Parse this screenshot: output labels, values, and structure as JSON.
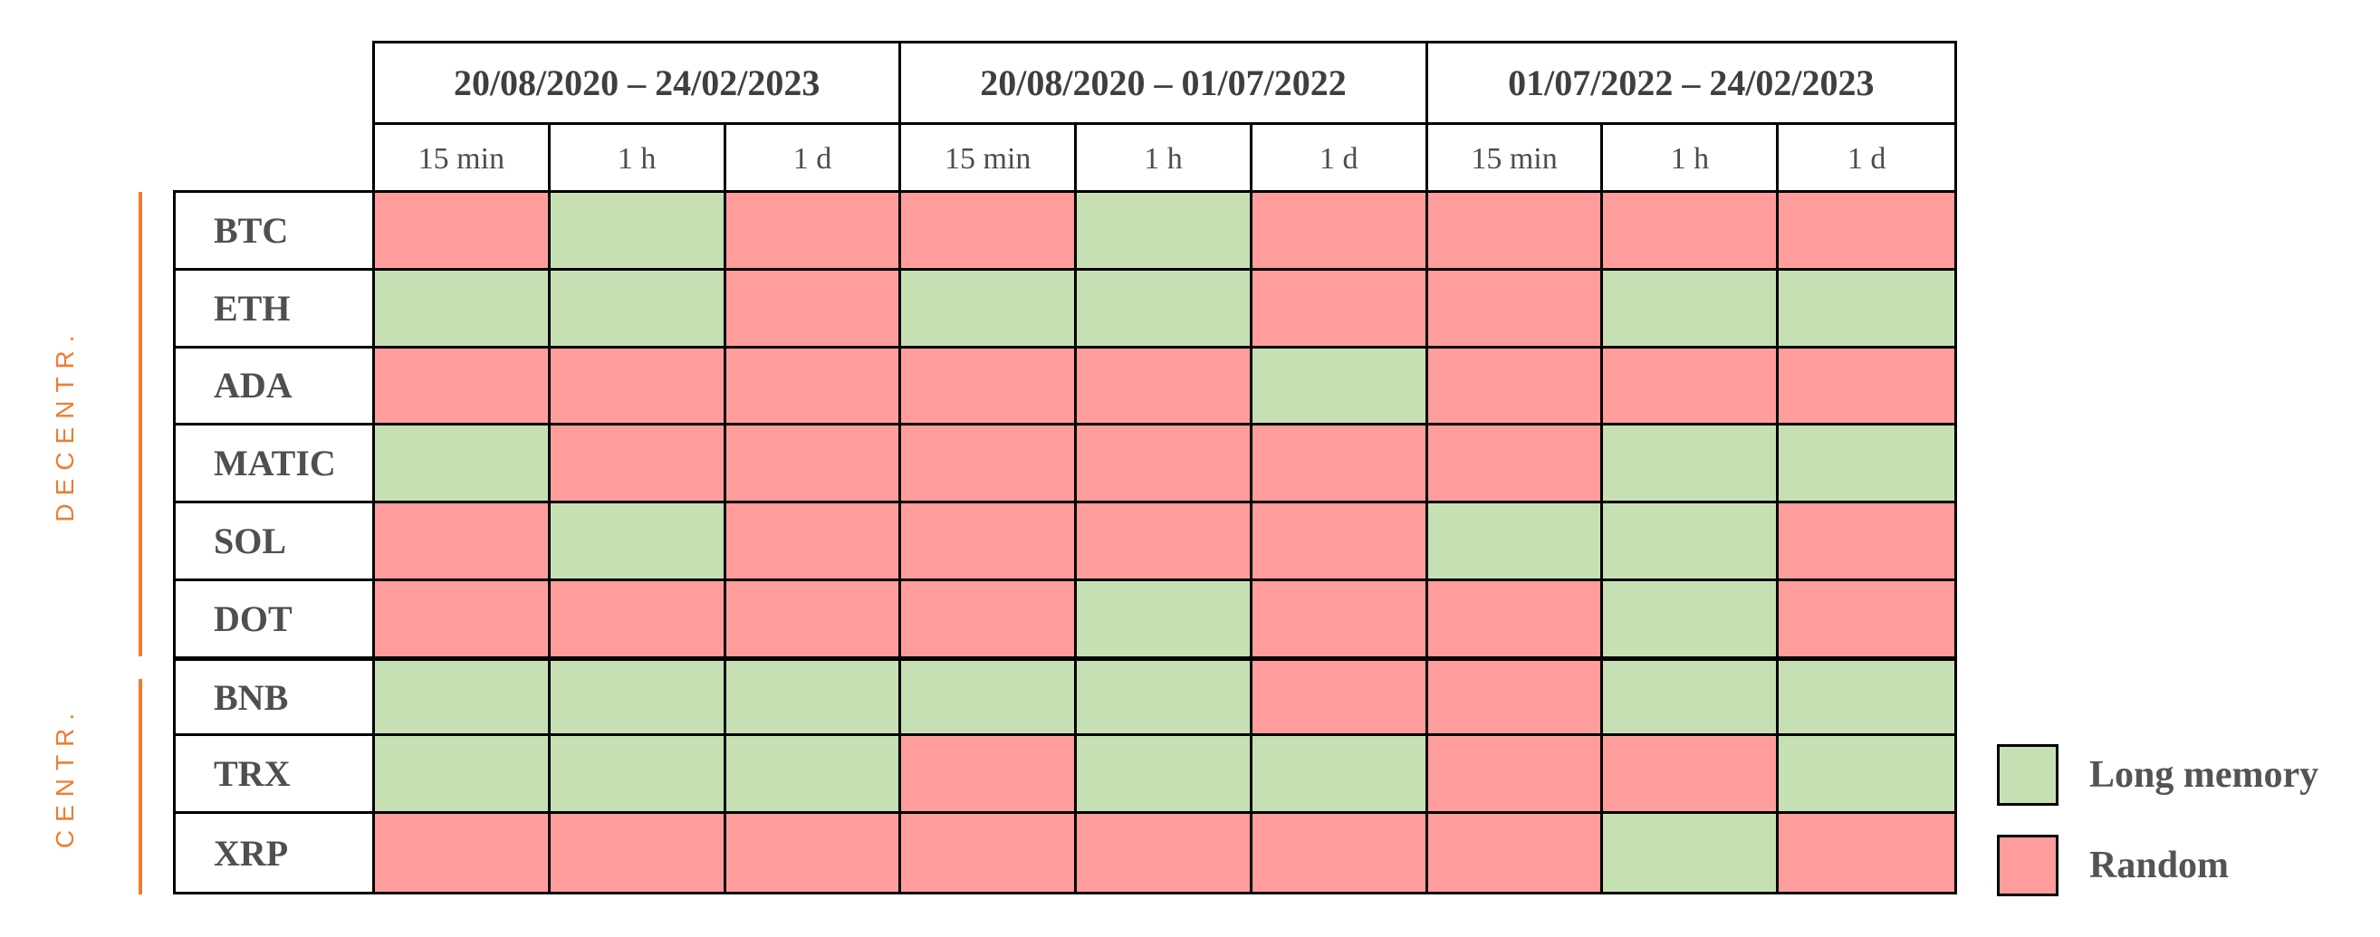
{
  "chart_data": {
    "type": "heatmap",
    "title": "",
    "column_groups": [
      {
        "label": "20/08/2020 – 24/02/2023",
        "columns": [
          "15 min",
          "1 h",
          "1 d"
        ]
      },
      {
        "label": "20/08/2020 – 01/07/2022",
        "columns": [
          "15 min",
          "1 h",
          "1 d"
        ]
      },
      {
        "label": "01/07/2022 – 24/02/2023",
        "columns": [
          "15 min",
          "1 h",
          "1 d"
        ]
      }
    ],
    "row_groups": [
      {
        "label": "DECENTR.",
        "rows": [
          "BTC",
          "ETH",
          "ADA",
          "MATIC",
          "SOL",
          "DOT"
        ]
      },
      {
        "label": "CENTR.",
        "rows": [
          "BNB",
          "TRX",
          "XRP"
        ]
      }
    ],
    "rows": [
      "BTC",
      "ETH",
      "ADA",
      "MATIC",
      "SOL",
      "DOT",
      "BNB",
      "TRX",
      "XRP"
    ],
    "values": [
      [
        "Random",
        "Long memory",
        "Random",
        "Random",
        "Long memory",
        "Random",
        "Random",
        "Random",
        "Random"
      ],
      [
        "Long memory",
        "Long memory",
        "Random",
        "Long memory",
        "Long memory",
        "Random",
        "Random",
        "Long memory",
        "Long memory"
      ],
      [
        "Random",
        "Random",
        "Random",
        "Random",
        "Random",
        "Long memory",
        "Random",
        "Random",
        "Random"
      ],
      [
        "Long memory",
        "Random",
        "Random",
        "Random",
        "Random",
        "Random",
        "Random",
        "Long memory",
        "Long memory"
      ],
      [
        "Random",
        "Long memory",
        "Random",
        "Random",
        "Random",
        "Random",
        "Long memory",
        "Long memory",
        "Random"
      ],
      [
        "Random",
        "Random",
        "Random",
        "Random",
        "Long memory",
        "Random",
        "Random",
        "Long memory",
        "Random"
      ],
      [
        "Long memory",
        "Long memory",
        "Long memory",
        "Long memory",
        "Long memory",
        "Random",
        "Random",
        "Long memory",
        "Long memory"
      ],
      [
        "Long memory",
        "Long memory",
        "Long memory",
        "Random",
        "Long memory",
        "Long memory",
        "Random",
        "Random",
        "Long memory"
      ],
      [
        "Random",
        "Random",
        "Random",
        "Random",
        "Random",
        "Random",
        "Random",
        "Long memory",
        "Random"
      ]
    ],
    "legend": [
      {
        "label": "Long memory",
        "color": "#c6e0b4"
      },
      {
        "label": "Random",
        "color": "#ff9d9d"
      }
    ],
    "layout_hints": {
      "grid": "on",
      "legend_position": "right-bottom",
      "accent_color": "#ed7d31",
      "border_color": "#000000"
    }
  }
}
